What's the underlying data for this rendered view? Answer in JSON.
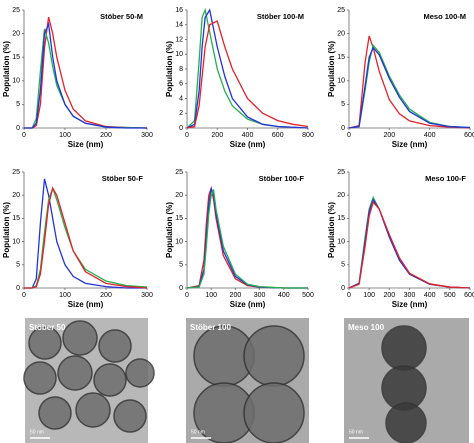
{
  "chart_data": [
    {
      "type": "line",
      "title": "Stöber 50-M",
      "x_label": "Size (nm)",
      "y_label": "Population (%)",
      "x": [
        0,
        20,
        30,
        40,
        50,
        60,
        70,
        80,
        100,
        120,
        150,
        200,
        250,
        300
      ],
      "series": [
        {
          "name": "red",
          "color": "#e8202a",
          "values": [
            0,
            0,
            0.5,
            5,
            17,
            23.5,
            20,
            15,
            8,
            4,
            1.5,
            0.3,
            0.1,
            0
          ]
        },
        {
          "name": "green",
          "color": "#22b04b",
          "values": [
            0,
            0,
            2,
            12,
            21,
            18,
            13,
            9,
            5,
            2.5,
            1,
            0.2,
            0.1,
            0
          ]
        },
        {
          "name": "blue",
          "color": "#2233dd",
          "values": [
            0,
            0,
            1,
            8,
            20,
            22,
            15,
            10,
            5,
            2.5,
            1,
            0.2,
            0,
            0
          ]
        }
      ],
      "xlim": [
        0,
        300
      ],
      "xticks": [
        0,
        100,
        200,
        300
      ],
      "ylim": [
        0,
        25
      ],
      "yticks": [
        0,
        5,
        10,
        15,
        20,
        25
      ]
    },
    {
      "type": "line",
      "title": "Stöber 100-M",
      "x_label": "Size (nm)",
      "y_label": "Population (%)",
      "x": [
        0,
        50,
        80,
        100,
        120,
        150,
        200,
        250,
        300,
        400,
        500,
        600,
        700,
        800
      ],
      "series": [
        {
          "name": "green",
          "color": "#22b04b",
          "values": [
            0,
            1,
            9,
            15,
            16,
            13,
            8,
            5,
            3,
            1.2,
            0.5,
            0.2,
            0.1,
            0
          ]
        },
        {
          "name": "blue",
          "color": "#2233dd",
          "values": [
            0,
            0.5,
            5,
            11,
            15,
            16,
            11,
            7,
            4,
            1.5,
            0.5,
            0.2,
            0.1,
            0
          ]
        },
        {
          "name": "red",
          "color": "#e8202a",
          "values": [
            0,
            0.2,
            3,
            7,
            11,
            14,
            14.5,
            11,
            8,
            4,
            2,
            1,
            0.5,
            0.2
          ]
        }
      ],
      "xlim": [
        0,
        800
      ],
      "xticks": [
        0,
        200,
        400,
        600,
        800
      ],
      "ylim": [
        0,
        16
      ],
      "yticks": [
        0,
        2,
        4,
        6,
        8,
        10,
        12,
        14,
        16
      ]
    },
    {
      "type": "line",
      "title": "Meso 100-M",
      "x_label": "Size (nm)",
      "y_label": "Population (%)",
      "x": [
        0,
        50,
        80,
        100,
        120,
        150,
        200,
        250,
        300,
        400,
        500,
        600
      ],
      "series": [
        {
          "name": "red",
          "color": "#e8202a",
          "values": [
            0,
            0.5,
            14,
            19.5,
            17,
            12,
            6,
            3,
            1.5,
            0.5,
            0.2,
            0
          ]
        },
        {
          "name": "green",
          "color": "#22b04b",
          "values": [
            0,
            0.3,
            8,
            14,
            17.5,
            16,
            11,
            7,
            4,
            1.2,
            0.3,
            0.1
          ]
        },
        {
          "name": "blue",
          "color": "#2233dd",
          "values": [
            0,
            0.3,
            9,
            15,
            17,
            15.5,
            10.5,
            6.5,
            3.5,
            1,
            0.3,
            0.1
          ]
        }
      ],
      "xlim": [
        0,
        600
      ],
      "xticks": [
        0,
        200,
        400,
        600
      ],
      "ylim": [
        0,
        25
      ],
      "yticks": [
        0,
        5,
        10,
        15,
        20,
        25
      ]
    },
    {
      "type": "line",
      "title": "Stöber 50-F",
      "x_label": "Size (nm)",
      "y_label": "Population (%)",
      "x": [
        0,
        20,
        30,
        40,
        50,
        60,
        70,
        80,
        100,
        120,
        150,
        200,
        250,
        300
      ],
      "series": [
        {
          "name": "blue",
          "color": "#2233dd",
          "values": [
            0,
            0,
            2,
            14,
            23.5,
            20,
            15,
            10,
            5,
            2.5,
            1,
            0.3,
            0,
            0
          ]
        },
        {
          "name": "green",
          "color": "#22b04b",
          "values": [
            0,
            0,
            0.5,
            4,
            12,
            19,
            21.5,
            19,
            13,
            8,
            4,
            1.5,
            0.5,
            0.2
          ]
        },
        {
          "name": "red",
          "color": "#e8202a",
          "values": [
            0,
            0,
            0.3,
            3,
            10,
            18,
            21.5,
            20,
            14,
            8,
            3.5,
            1,
            0.3,
            0
          ]
        }
      ],
      "xlim": [
        0,
        300
      ],
      "xticks": [
        0,
        100,
        200,
        300
      ],
      "ylim": [
        0,
        25
      ],
      "yticks": [
        0,
        5,
        10,
        15,
        20,
        25
      ]
    },
    {
      "type": "line",
      "title": "Stöber 100-F",
      "x_label": "Size (nm)",
      "y_label": "Population (%)",
      "x": [
        0,
        50,
        70,
        80,
        90,
        100,
        110,
        120,
        150,
        200,
        250,
        300,
        400,
        500
      ],
      "series": [
        {
          "name": "red",
          "color": "#e8202a",
          "values": [
            0,
            0.5,
            6,
            14,
            20,
            21.5,
            19,
            15,
            7,
            2,
            0.5,
            0.2,
            0,
            0
          ]
        },
        {
          "name": "blue",
          "color": "#2233dd",
          "values": [
            0,
            0.3,
            4,
            11,
            18,
            21.5,
            20,
            16,
            8,
            2.5,
            0.7,
            0.2,
            0,
            0
          ]
        },
        {
          "name": "green",
          "color": "#22b04b",
          "values": [
            0,
            0.2,
            3,
            9,
            16,
            20,
            21,
            17,
            9,
            3,
            0.8,
            0.3,
            0,
            0
          ]
        }
      ],
      "xlim": [
        0,
        500
      ],
      "xticks": [
        0,
        100,
        200,
        300,
        400,
        500
      ],
      "ylim": [
        0,
        25
      ],
      "yticks": [
        0,
        5,
        10,
        15,
        20,
        25
      ]
    },
    {
      "type": "line",
      "title": "Meso 100-F",
      "x_label": "Size (nm)",
      "y_label": "Population (%)",
      "x": [
        0,
        50,
        80,
        100,
        120,
        150,
        200,
        250,
        300,
        400,
        500,
        600
      ],
      "series": [
        {
          "name": "green",
          "color": "#22b04b",
          "values": [
            0,
            1,
            11,
            17,
            19.5,
            17,
            11,
            6,
            3,
            0.8,
            0.2,
            0
          ]
        },
        {
          "name": "blue",
          "color": "#2233dd",
          "values": [
            0,
            1,
            10,
            16.5,
            19,
            17,
            11,
            6,
            3,
            0.8,
            0.2,
            0
          ]
        },
        {
          "name": "red",
          "color": "#e8202a",
          "values": [
            0,
            0.8,
            9,
            15.5,
            18.5,
            17,
            11.5,
            6.5,
            3.2,
            0.9,
            0.2,
            0
          ]
        }
      ],
      "xlim": [
        0,
        600
      ],
      "xticks": [
        0,
        100,
        200,
        300,
        400,
        500,
        600
      ],
      "ylim": [
        0,
        25
      ],
      "yticks": [
        0,
        5,
        10,
        15,
        20,
        25
      ]
    }
  ],
  "images": [
    {
      "label": "Stöber 50",
      "scale": "50 nm"
    },
    {
      "label": "Stöber 100",
      "scale": "50 nm"
    },
    {
      "label": "Meso 100",
      "scale": "50 nm"
    }
  ]
}
